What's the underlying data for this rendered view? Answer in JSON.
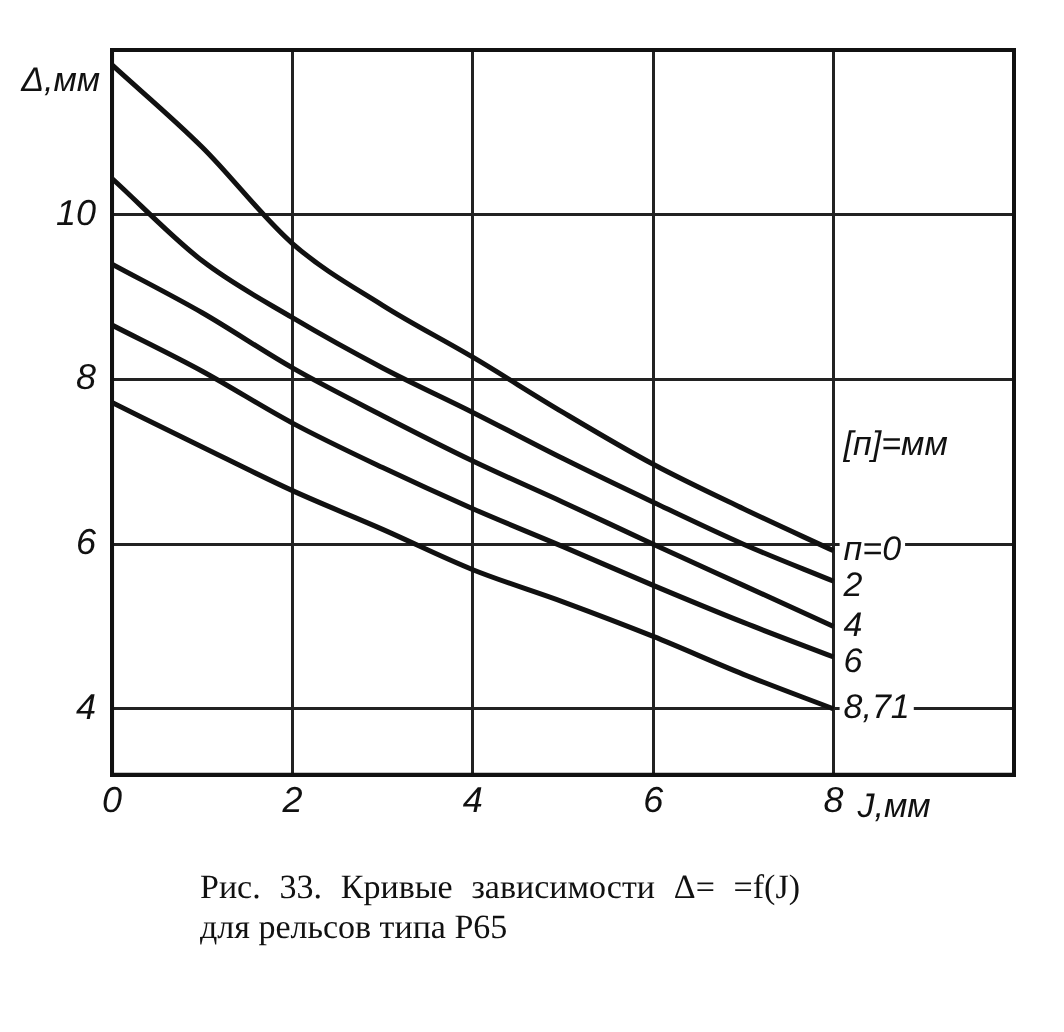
{
  "chart_data": {
    "type": "line",
    "xlabel": "J,мм",
    "ylabel": "Δ,мм",
    "legend_title": "[п]=мм",
    "annotations": [
      "Рис. 33. Кривые зависимости Δ= =f(J) для рельсов типа Р65"
    ],
    "x": [
      0,
      1,
      2,
      3,
      4,
      5,
      6,
      7,
      8
    ],
    "xlim": [
      0,
      10
    ],
    "xticks": [
      0,
      2,
      4,
      6,
      8
    ],
    "ylim": [
      3.2,
      12
    ],
    "yticks": [
      4,
      6,
      8,
      10
    ],
    "grid": true,
    "marker": "none",
    "line_style": "solid",
    "series": [
      {
        "name": "п=0",
        "color": "#111111",
        "values": [
          11.82,
          10.82,
          9.65,
          8.9,
          8.27,
          7.6,
          6.97,
          6.43,
          5.92
        ]
      },
      {
        "name": "2",
        "color": "#111111",
        "values": [
          10.44,
          9.44,
          8.75,
          8.14,
          7.6,
          7.04,
          6.51,
          6.0,
          5.55
        ]
      },
      {
        "name": "4",
        "color": "#111111",
        "values": [
          9.4,
          8.81,
          8.14,
          7.56,
          7.01,
          6.51,
          6.0,
          5.5,
          5.0
        ]
      },
      {
        "name": "6",
        "color": "#111111",
        "values": [
          8.66,
          8.1,
          7.47,
          6.93,
          6.43,
          5.97,
          5.5,
          5.05,
          4.63
        ]
      },
      {
        "name": "8,71",
        "color": "#111111",
        "values": [
          7.72,
          7.18,
          6.65,
          6.18,
          5.69,
          5.3,
          4.88,
          4.42,
          4.0
        ]
      }
    ]
  }
}
